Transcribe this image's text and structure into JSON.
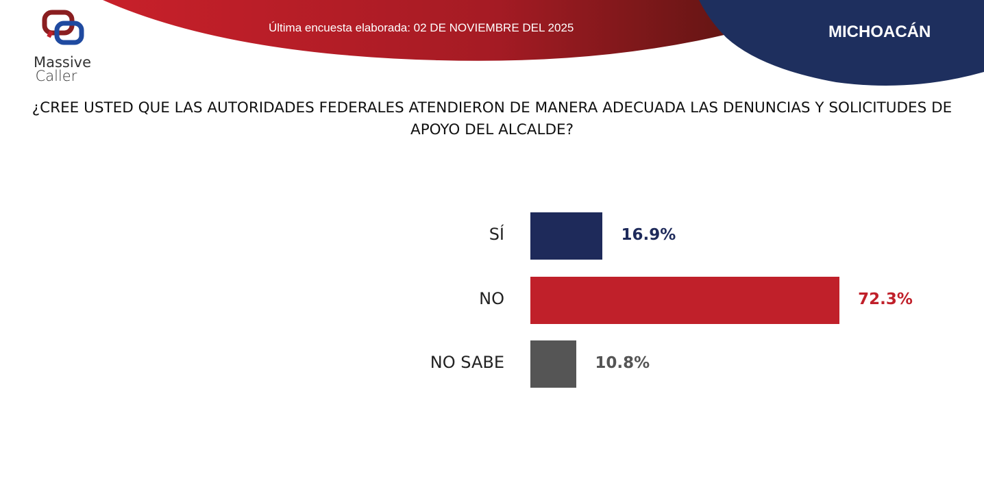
{
  "header": {
    "logo_text_1": "Massive",
    "logo_text_2": "Caller",
    "date_label": "Última encuesta elaborada: 02 DE NOVIEMBRE DEL 2025",
    "state": "MICHOACÁN"
  },
  "colors": {
    "red": "#c0202a",
    "navy": "#1e2a5a",
    "gray": "#555555"
  },
  "chart_data": {
    "type": "bar",
    "orientation": "horizontal",
    "title": "¿CREE USTED QUE LAS AUTORIDADES FEDERALES ATENDIERON DE MANERA ADECUADA LAS DENUNCIAS Y SOLICITUDES DE APOYO DEL ALCALDE?",
    "categories": [
      "SÍ",
      "NO",
      "NO SABE"
    ],
    "values": [
      16.9,
      72.3,
      10.8
    ],
    "labels": [
      "16.9%",
      "72.3%",
      "10.8%"
    ],
    "bar_colors": [
      "#1e2a5a",
      "#c0202a",
      "#555555"
    ],
    "grid": false,
    "legend": "none"
  }
}
